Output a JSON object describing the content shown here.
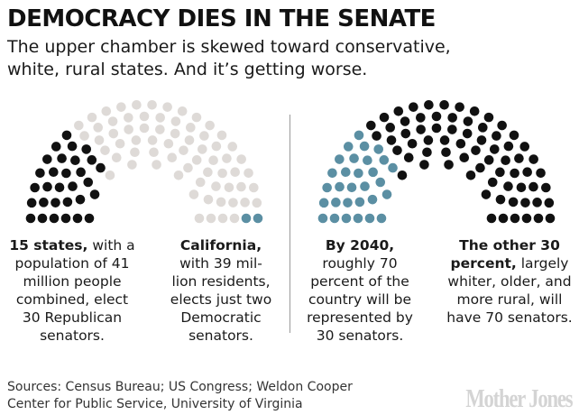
{
  "title": "DEMOCRACY DIES IN THE SENATE",
  "subtitle": "The upper chamber is skewed toward conservative, white, rural states. And it’s getting worse.",
  "colors": {
    "republican": "#111111",
    "democratic": "#5b8fa3",
    "other": "#dedad7",
    "text": "#1a1a1a",
    "divider": "#9a9a9a",
    "logo": "#d4d4d4"
  },
  "charts": [
    {
      "total_seats": 100,
      "groups": [
        {
          "count": 30,
          "color": "#111111"
        },
        {
          "count": 68,
          "color": "#dedad7"
        },
        {
          "count": 2,
          "color": "#5b8fa3"
        }
      ],
      "captions": [
        {
          "bold": "15 states,",
          "text": " with a population of 41 million people combined, elect 30 Republican senators."
        },
        {
          "bold": "California,",
          "text": " with 39 mil-lion residents, elects just two Democratic senators."
        }
      ]
    },
    {
      "total_seats": 100,
      "groups": [
        {
          "count": 30,
          "color": "#5b8fa3"
        },
        {
          "count": 70,
          "color": "#111111"
        }
      ],
      "captions": [
        {
          "bold": "By 2040,",
          "text": " roughly 70 percent of the country will be represented by 30 senators."
        },
        {
          "bold": "The other 30 percent,",
          "text": " largely whiter, older, and more rural, will have 70 senators."
        }
      ]
    }
  ],
  "sources": "Sources: Census Bureau; US Congress; Weldon Cooper Center for Public Service, University of Virginia",
  "logo": "Mother Jones"
}
